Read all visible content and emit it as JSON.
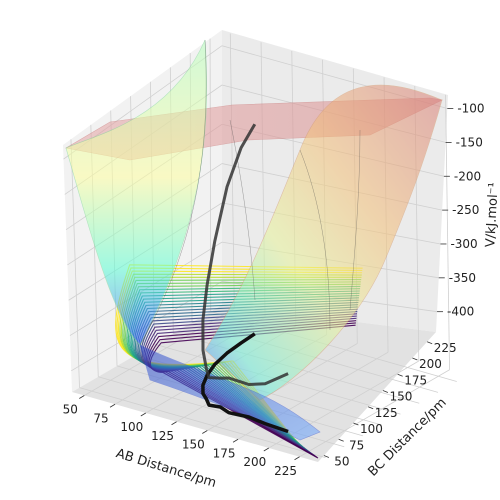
{
  "chart_data": {
    "type": "surface3d",
    "title": "",
    "xlabel": "AB Distance/pm",
    "ylabel": "BC Distance/pm",
    "zlabel": "V/kJ.mol⁻¹",
    "x_ticks": [
      50,
      75,
      100,
      125,
      150,
      175,
      200,
      225
    ],
    "y_ticks": [
      50,
      75,
      100,
      125,
      150,
      175,
      200,
      225
    ],
    "z_ticks": [
      -400,
      -350,
      -300,
      -250,
      -200,
      -150,
      -100
    ],
    "xlim": [
      40,
      240
    ],
    "ylim": [
      40,
      240
    ],
    "zlim": [
      -430,
      -80
    ],
    "grid": true,
    "surface_colormap": "jet (translucent)",
    "contour_colormap": "viridis",
    "trajectory_color": "#111111",
    "trajectory": {
      "ab": [
        195,
        175,
        160,
        145,
        135,
        127,
        120,
        113,
        105,
        98,
        92,
        88,
        86,
        85
      ],
      "bc": [
        74,
        76,
        79,
        77,
        82,
        80,
        88,
        95,
        108,
        125,
        145,
        168,
        190,
        210
      ],
      "v": [
        -350,
        -375,
        -385,
        -382,
        -390,
        -392,
        -388,
        -370,
        -340,
        -305,
        -260,
        -200,
        -160,
        -140
      ]
    }
  }
}
